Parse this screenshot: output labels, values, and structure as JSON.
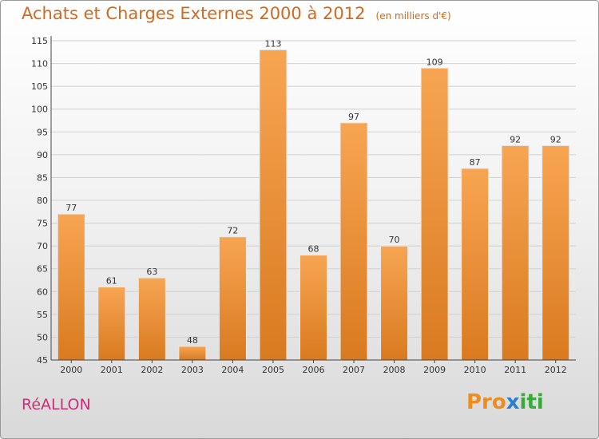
{
  "title": "Achats et Charges Externes 2000 à 2012",
  "subtitle": "(en milliers d'€)",
  "commune": "RéALLON",
  "logo": [
    "Pro",
    "x",
    "iti"
  ],
  "colors": {
    "bar_light": "#f7a552",
    "bar_dark": "#d97a1f",
    "title": "#d2691e",
    "commune": "#c8307a"
  },
  "chart_data": {
    "type": "bar",
    "title": "Achats et Charges Externes 2000 à 2012",
    "subtitle": "(en milliers d'€)",
    "categories": [
      "2000",
      "2001",
      "2002",
      "2003",
      "2004",
      "2005",
      "2006",
      "2007",
      "2008",
      "2009",
      "2010",
      "2011",
      "2012"
    ],
    "values": [
      77,
      61,
      63,
      48,
      72,
      113,
      68,
      97,
      70,
      109,
      87,
      92,
      92
    ],
    "ylim": [
      45,
      115
    ],
    "yticks": [
      45,
      50,
      55,
      60,
      65,
      70,
      75,
      80,
      85,
      90,
      95,
      100,
      105,
      110,
      115
    ],
    "grid": true
  }
}
